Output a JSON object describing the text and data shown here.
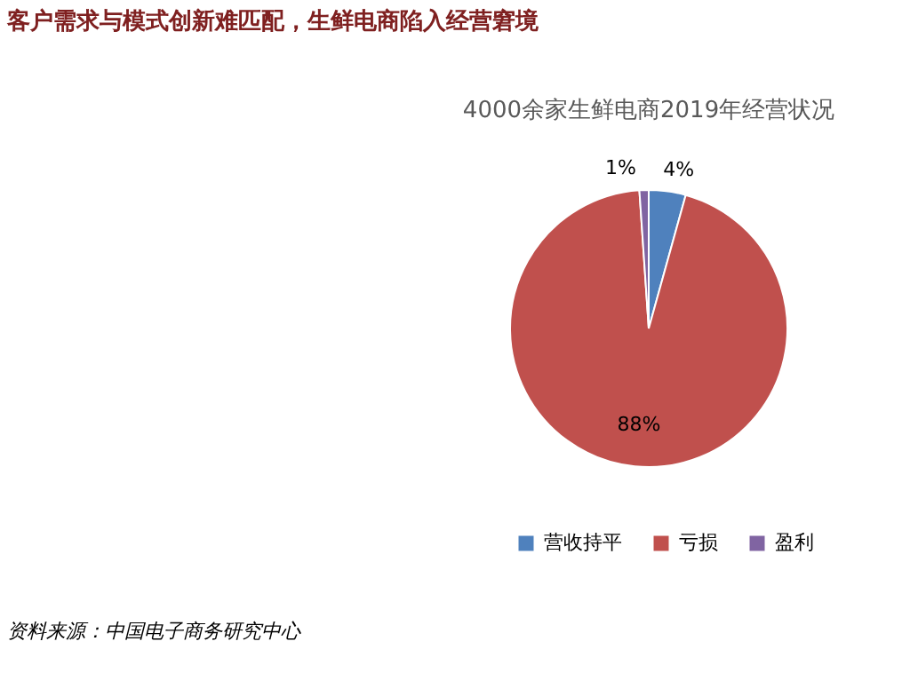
{
  "chart_data": {
    "type": "pie",
    "title": "客户需求与模式创新难匹配，生鲜电商陷入经营窘境",
    "subtitle": "4000余家生鲜电商2019年经营状况",
    "categories": [
      "营收持平",
      "亏损",
      "盈利"
    ],
    "values": [
      4,
      88,
      1
    ],
    "colors": [
      "#4f81bd",
      "#c0504d",
      "#8064a2"
    ],
    "value_labels": [
      "4%",
      "88%",
      "1%"
    ],
    "legend": "bottom",
    "annotations": [
      "资料来源：中国电子商务研究中心"
    ]
  }
}
